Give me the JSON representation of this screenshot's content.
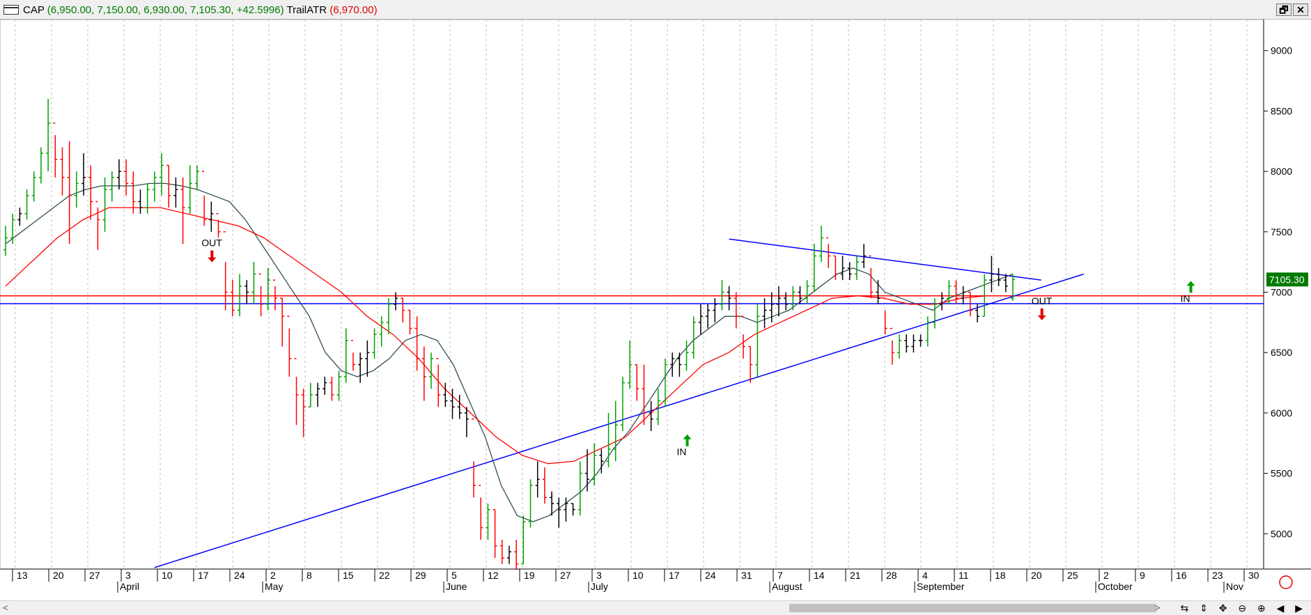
{
  "window": {
    "symbol": "CAP",
    "quote": "(6,950.00, 7,150.00, 6,930.00, 7,105.30, +42.5996)",
    "indicator": "TrailATR",
    "indicator_value": "(6,970.00)",
    "restore_label": "🗗",
    "close_label": "✕"
  },
  "chart_data": {
    "type": "bar",
    "subtype": "ohlc",
    "ylim": [
      4650,
      9200
    ],
    "y_ticks": [
      5000,
      5500,
      6000,
      6500,
      7000,
      7500,
      8000,
      8500,
      9000
    ],
    "y_tick_labels": [
      "5000",
      "5500",
      "6000",
      "6500",
      "7000",
      "7500",
      "8000",
      "8500",
      "9000"
    ],
    "last_price_label": "7105.30",
    "day_labels": [
      "13",
      "20",
      "27",
      "3",
      "10",
      "17",
      "24",
      "2",
      "8",
      "15",
      "22",
      "29",
      "5",
      "12",
      "19",
      "27",
      "3",
      "10",
      "17",
      "24",
      "31",
      "7",
      "14",
      "21",
      "28",
      "4",
      "11",
      "18",
      "20",
      "25",
      "2",
      "9",
      "16",
      "23",
      "30"
    ],
    "month_labels": [
      "April",
      "May",
      "June",
      "July",
      "August",
      "September",
      "October",
      "Nov"
    ],
    "horizontal_lines": [
      {
        "value": 6970,
        "color": "#ff0000"
      },
      {
        "value": 6905,
        "color": "#0000ff"
      }
    ],
    "trendlines": [
      {
        "from": [
          21,
          4720
        ],
        "to": [
          152,
          7150
        ],
        "color": "#0000ff"
      },
      {
        "from": [
          102,
          7440
        ],
        "to": [
          146,
          7100
        ],
        "color": "#0000ff"
      }
    ],
    "series": [
      {
        "values": [
          [
            7350,
            7550,
            7300,
            7450
          ],
          [
            7450,
            7650,
            7400,
            7600
          ],
          [
            7600,
            7700,
            7550,
            7650
          ],
          [
            7650,
            7850,
            7600,
            7800
          ],
          [
            7800,
            8000,
            7750,
            7950
          ],
          [
            7950,
            8200,
            7900,
            8150
          ],
          [
            8150,
            8600,
            8000,
            8400
          ],
          [
            8400,
            8300,
            7950,
            8100
          ],
          [
            8100,
            8200,
            7800,
            7950
          ],
          [
            7950,
            8250,
            7400,
            7800
          ],
          [
            7800,
            8000,
            7700,
            7900
          ],
          [
            7900,
            8150,
            7800,
            7950
          ],
          [
            7950,
            8050,
            7600,
            7750
          ],
          [
            7750,
            7700,
            7350,
            7600
          ],
          [
            7600,
            7950,
            7500,
            7850
          ],
          [
            7850,
            8000,
            7750,
            7950
          ],
          [
            7950,
            8100,
            7850,
            8000
          ],
          [
            8000,
            8100,
            7800,
            7900
          ],
          [
            7900,
            8000,
            7650,
            7750
          ],
          [
            7750,
            7850,
            7650,
            7700
          ],
          [
            7700,
            7900,
            7650,
            7850
          ],
          [
            7850,
            8000,
            7750,
            7950
          ],
          [
            7950,
            8150,
            7800,
            8050
          ],
          [
            8050,
            8050,
            7700,
            7800
          ],
          [
            7800,
            7950,
            7700,
            7850
          ],
          [
            7850,
            7950,
            7400,
            7700
          ],
          [
            7700,
            8050,
            7650,
            7900
          ],
          [
            7900,
            8050,
            7850,
            8000
          ],
          [
            8000,
            7800,
            7550,
            7600
          ],
          [
            7600,
            7750,
            7500,
            7650
          ],
          [
            7650,
            7600,
            7450,
            7500
          ],
          [
            7500,
            7250,
            6850,
            7000
          ],
          [
            7000,
            7100,
            6800,
            6850
          ],
          [
            6850,
            7150,
            6800,
            7050
          ],
          [
            7050,
            7100,
            6900,
            7000
          ],
          [
            7000,
            7250,
            6900,
            7150
          ],
          [
            7150,
            7050,
            6800,
            6900
          ],
          [
            6900,
            7200,
            6850,
            7100
          ],
          [
            7100,
            7050,
            6850,
            6950
          ],
          [
            6950,
            6950,
            6550,
            6800
          ],
          [
            6800,
            6700,
            6300,
            6450
          ],
          [
            6450,
            6300,
            5900,
            6150
          ],
          [
            6150,
            6200,
            5800,
            6050
          ],
          [
            6050,
            6250,
            6050,
            6150
          ],
          [
            6150,
            6250,
            6050,
            6200
          ],
          [
            6200,
            6300,
            6150,
            6250
          ],
          [
            6250,
            6300,
            6100,
            6150
          ],
          [
            6150,
            6350,
            6100,
            6300
          ],
          [
            6300,
            6700,
            6250,
            6600
          ],
          [
            6600,
            6500,
            6350,
            6400
          ],
          [
            6400,
            6500,
            6250,
            6450
          ],
          [
            6450,
            6600,
            6300,
            6500
          ],
          [
            6500,
            6700,
            6450,
            6650
          ],
          [
            6650,
            6800,
            6550,
            6750
          ],
          [
            6750,
            6950,
            6650,
            6900
          ],
          [
            6900,
            7000,
            6850,
            6950
          ],
          [
            6950,
            6950,
            6750,
            6850
          ],
          [
            6850,
            6850,
            6650,
            6700
          ],
          [
            6700,
            6800,
            6350,
            6450
          ],
          [
            6450,
            6550,
            6100,
            6300
          ],
          [
            6300,
            6500,
            6200,
            6450
          ],
          [
            6450,
            6400,
            6050,
            6150
          ],
          [
            6150,
            6250,
            6050,
            6100
          ],
          [
            6100,
            6200,
            5950,
            6050
          ],
          [
            6050,
            6150,
            5950,
            6000
          ],
          [
            6000,
            6050,
            5800,
            5950
          ],
          [
            5950,
            5600,
            5300,
            5400
          ],
          [
            5400,
            5300,
            4950,
            5050
          ],
          [
            5050,
            5250,
            4950,
            5200
          ],
          [
            5200,
            5200,
            4800,
            4900
          ],
          [
            4900,
            4950,
            4750,
            4800
          ],
          [
            4800,
            4900,
            4750,
            4850
          ],
          [
            4850,
            4950,
            4700,
            4750
          ],
          [
            4750,
            5150,
            4750,
            5100
          ],
          [
            5100,
            5450,
            5050,
            5400
          ],
          [
            5400,
            5600,
            5300,
            5450
          ],
          [
            5450,
            5550,
            5250,
            5300
          ],
          [
            5300,
            5350,
            5150,
            5250
          ],
          [
            5250,
            5300,
            5050,
            5200
          ],
          [
            5200,
            5300,
            5100,
            5250
          ],
          [
            5250,
            5250,
            5150,
            5200
          ],
          [
            5200,
            5600,
            5150,
            5500
          ],
          [
            5500,
            5700,
            5350,
            5450
          ],
          [
            5450,
            5750,
            5400,
            5650
          ],
          [
            5650,
            5700,
            5500,
            5600
          ],
          [
            5600,
            6000,
            5550,
            5700
          ],
          [
            5700,
            6100,
            5600,
            5900
          ],
          [
            5900,
            6300,
            5850,
            6250
          ],
          [
            6250,
            6600,
            6200,
            6400
          ],
          [
            6400,
            6400,
            6100,
            6200
          ],
          [
            6200,
            6400,
            5900,
            6000
          ],
          [
            6000,
            6100,
            5850,
            5950
          ],
          [
            5950,
            6200,
            5900,
            6100
          ],
          [
            6100,
            6450,
            6050,
            6400
          ],
          [
            6400,
            6500,
            6300,
            6450
          ],
          [
            6450,
            6500,
            6300,
            6400
          ],
          [
            6400,
            6600,
            6350,
            6500
          ],
          [
            6500,
            6800,
            6450,
            6750
          ],
          [
            6750,
            6900,
            6650,
            6800
          ],
          [
            6800,
            6900,
            6700,
            6850
          ],
          [
            6850,
            6950,
            6750,
            6900
          ],
          [
            6900,
            7100,
            6850,
            7000
          ],
          [
            7000,
            7050,
            6850,
            6950
          ],
          [
            6950,
            7000,
            6700,
            6800
          ],
          [
            6800,
            6650,
            6450,
            6550
          ],
          [
            6550,
            6550,
            6250,
            6400
          ],
          [
            6400,
            6900,
            6300,
            6800
          ],
          [
            6800,
            6950,
            6700,
            6850
          ],
          [
            6850,
            7000,
            6750,
            6900
          ],
          [
            6900,
            7050,
            6800,
            6950
          ],
          [
            6950,
            7000,
            6850,
            6900
          ],
          [
            6900,
            7050,
            6850,
            7000
          ],
          [
            7000,
            7050,
            6900,
            6950
          ],
          [
            6950,
            7100,
            6900,
            7050
          ],
          [
            7050,
            7400,
            7000,
            7300
          ],
          [
            7300,
            7550,
            7250,
            7450
          ],
          [
            7450,
            7400,
            7200,
            7300
          ],
          [
            7300,
            7300,
            7100,
            7150
          ],
          [
            7150,
            7300,
            7100,
            7200
          ],
          [
            7200,
            7250,
            7100,
            7150
          ],
          [
            7150,
            7300,
            7100,
            7250
          ],
          [
            7250,
            7400,
            7200,
            7300
          ],
          [
            7300,
            7200,
            6950,
            7000
          ],
          [
            7000,
            7100,
            6900,
            6950
          ],
          [
            6950,
            6850,
            6650,
            6700
          ],
          [
            6700,
            6600,
            6400,
            6500
          ],
          [
            6500,
            6650,
            6450,
            6600
          ],
          [
            6600,
            6650,
            6500,
            6550
          ],
          [
            6550,
            6650,
            6500,
            6600
          ],
          [
            6600,
            6650,
            6550,
            6600
          ],
          [
            6600,
            6800,
            6550,
            6750
          ],
          [
            6750,
            6950,
            6700,
            6900
          ],
          [
            6900,
            7000,
            6850,
            6950
          ],
          [
            6950,
            7100,
            6900,
            7050
          ],
          [
            7050,
            7100,
            6900,
            6950
          ],
          [
            6950,
            7050,
            6900,
            7000
          ],
          [
            7000,
            7000,
            6800,
            6850
          ],
          [
            6850,
            6900,
            6750,
            6800
          ],
          [
            6800,
            7150,
            6800,
            7100
          ],
          [
            7100,
            7300,
            7000,
            7150
          ],
          [
            7150,
            7200,
            7050,
            7100
          ],
          [
            7100,
            7150,
            7000,
            7050
          ],
          [
            6950,
            7150,
            6930,
            7105
          ]
        ]
      },
      {
        "name": "",
        "color": "#2f4f4f",
        "values": [
          7400,
          7500,
          7600,
          7700,
          7800,
          7850,
          7880,
          7880,
          7880,
          7900,
          7900,
          7880,
          7850,
          7800,
          7750,
          7600,
          7400,
          7200,
          7000,
          6800,
          6500,
          6350,
          6300,
          6350,
          6450,
          6600,
          6650,
          6600,
          6400,
          6100,
          5800,
          5400,
          5150,
          5100,
          5150,
          5250,
          5350,
          5500,
          5700,
          5850,
          6050,
          6250,
          6450,
          6600,
          6700,
          6800,
          6800,
          6750,
          6800,
          6850,
          6950,
          7050,
          7150,
          7200,
          7150,
          7000,
          6950,
          6900,
          6850,
          6950,
          7000,
          7050,
          7100,
          7150
        ]
      },
      {
        "name": "",
        "color": "#ff0000",
        "values": [
          7050,
          7250,
          7450,
          7600,
          7700,
          7700,
          7700,
          7650,
          7600,
          7550,
          7450,
          7300,
          7150,
          7000,
          6800,
          6650,
          6450,
          6200,
          6000,
          5800,
          5650,
          5580,
          5600,
          5700,
          5800,
          6000,
          6200,
          6400,
          6500,
          6650,
          6750,
          6850,
          6950,
          6970,
          6950,
          6900,
          6900,
          6950,
          6970,
          6970
        ]
      }
    ],
    "annotations": [
      {
        "text": "OUT",
        "x": 29,
        "y": 7380,
        "color": "#000000"
      },
      {
        "text": "IN",
        "x": 96,
        "y": 5650,
        "color": "#000000"
      },
      {
        "text": "OUT",
        "x": 146,
        "y": 6900,
        "color": "#000000"
      },
      {
        "text": "IN",
        "x": 167,
        "y": 6920,
        "color": "#000000"
      }
    ]
  }
}
